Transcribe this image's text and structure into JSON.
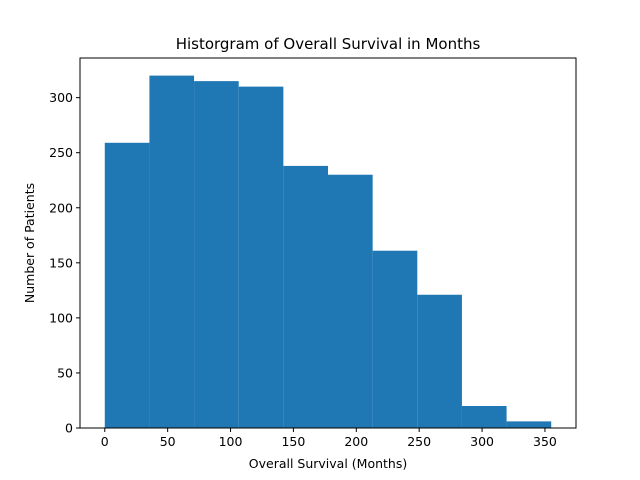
{
  "chart_data": {
    "type": "bar",
    "subtype": "histogram",
    "title": "Historgram of Overall Survival in Months",
    "xlabel": "Overall Survival (Months)",
    "ylabel": "Number of Patients",
    "bin_edges": [
      0.0,
      35.5,
      71.0,
      106.5,
      142.0,
      177.5,
      213.0,
      248.5,
      284.0,
      319.5,
      355.0
    ],
    "values": [
      259,
      320,
      315,
      310,
      238,
      230,
      161,
      121,
      20,
      6
    ],
    "xlim": [
      -19.7,
      374.7
    ],
    "ylim": [
      0,
      336
    ],
    "xticks": [
      0,
      50,
      100,
      150,
      200,
      250,
      300,
      350
    ],
    "yticks": [
      0,
      50,
      100,
      150,
      200,
      250,
      300
    ],
    "grid": false,
    "legend": "none",
    "colors": {
      "bar": "#1f77b4",
      "axes": "#000000"
    }
  }
}
